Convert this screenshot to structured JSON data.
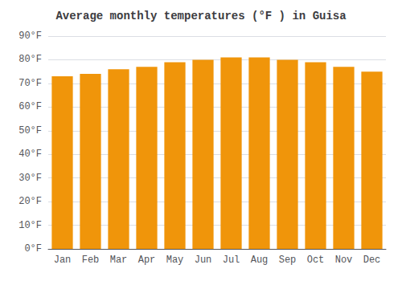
{
  "chart_data": {
    "type": "bar",
    "title": "Average monthly temperatures (°F ) in Guisa",
    "categories": [
      "Jan",
      "Feb",
      "Mar",
      "Apr",
      "May",
      "Jun",
      "Jul",
      "Aug",
      "Sep",
      "Oct",
      "Nov",
      "Dec"
    ],
    "values": [
      73,
      74,
      76,
      77,
      79,
      80,
      81,
      81,
      80,
      79,
      77,
      75
    ],
    "color": "#F0950A",
    "ylim": [
      0,
      90
    ],
    "yticks": [
      {
        "value": 0,
        "label": "0°F"
      },
      {
        "value": 10,
        "label": "10°F"
      },
      {
        "value": 20,
        "label": "20°F"
      },
      {
        "value": 30,
        "label": "30°F"
      },
      {
        "value": 40,
        "label": "40°F"
      },
      {
        "value": 50,
        "label": "50°F"
      },
      {
        "value": 60,
        "label": "60°F"
      },
      {
        "value": 70,
        "label": "70°F"
      },
      {
        "value": 80,
        "label": "80°F"
      },
      {
        "value": 90,
        "label": "90°F"
      }
    ],
    "grid": true
  }
}
